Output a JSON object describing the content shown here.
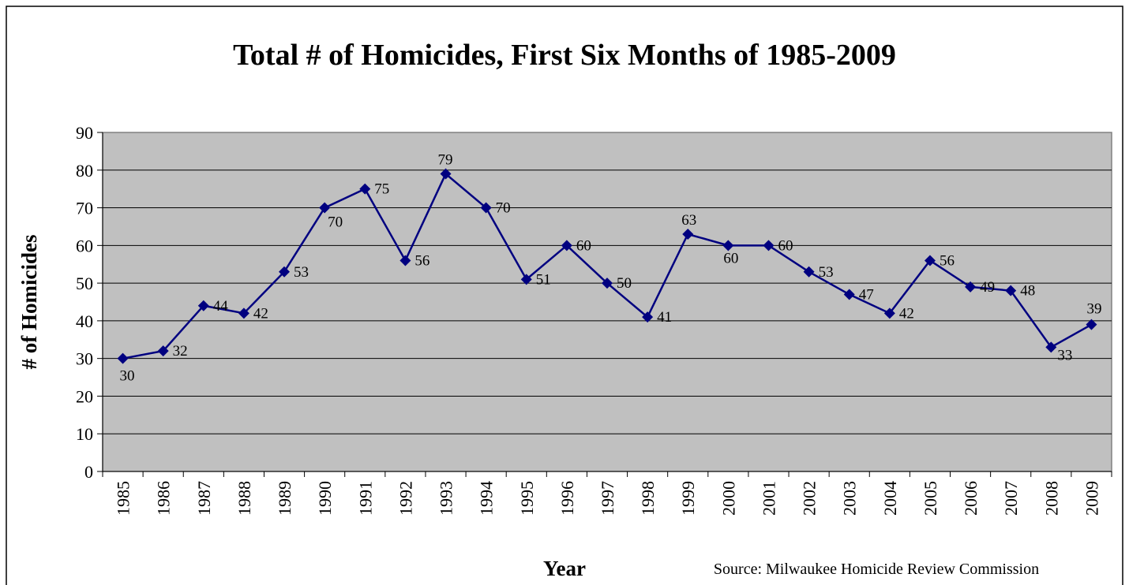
{
  "chart_data": {
    "type": "line",
    "title": "Total # of Homicides, First Six Months of 1985-2009",
    "x_label": "Year",
    "y_label": "# of Homicides",
    "source": "Source: Milwaukee Homicide Review Commission",
    "categories": [
      "1985",
      "1986",
      "1987",
      "1988",
      "1989",
      "1990",
      "1991",
      "1992",
      "1993",
      "1994",
      "1995",
      "1996",
      "1997",
      "1998",
      "1999",
      "2000",
      "2001",
      "2002",
      "2003",
      "2004",
      "2005",
      "2006",
      "2007",
      "2008",
      "2009"
    ],
    "values": [
      30,
      32,
      44,
      42,
      53,
      70,
      75,
      56,
      79,
      70,
      51,
      60,
      50,
      41,
      63,
      60,
      60,
      53,
      47,
      42,
      56,
      49,
      48,
      33,
      39
    ],
    "color": "#000080",
    "ylim": [
      0,
      90
    ],
    "yticks": [
      0,
      10,
      20,
      30,
      40,
      50,
      60,
      70,
      80,
      90
    ],
    "grid": true,
    "plot_background": "#c0c0c0"
  }
}
